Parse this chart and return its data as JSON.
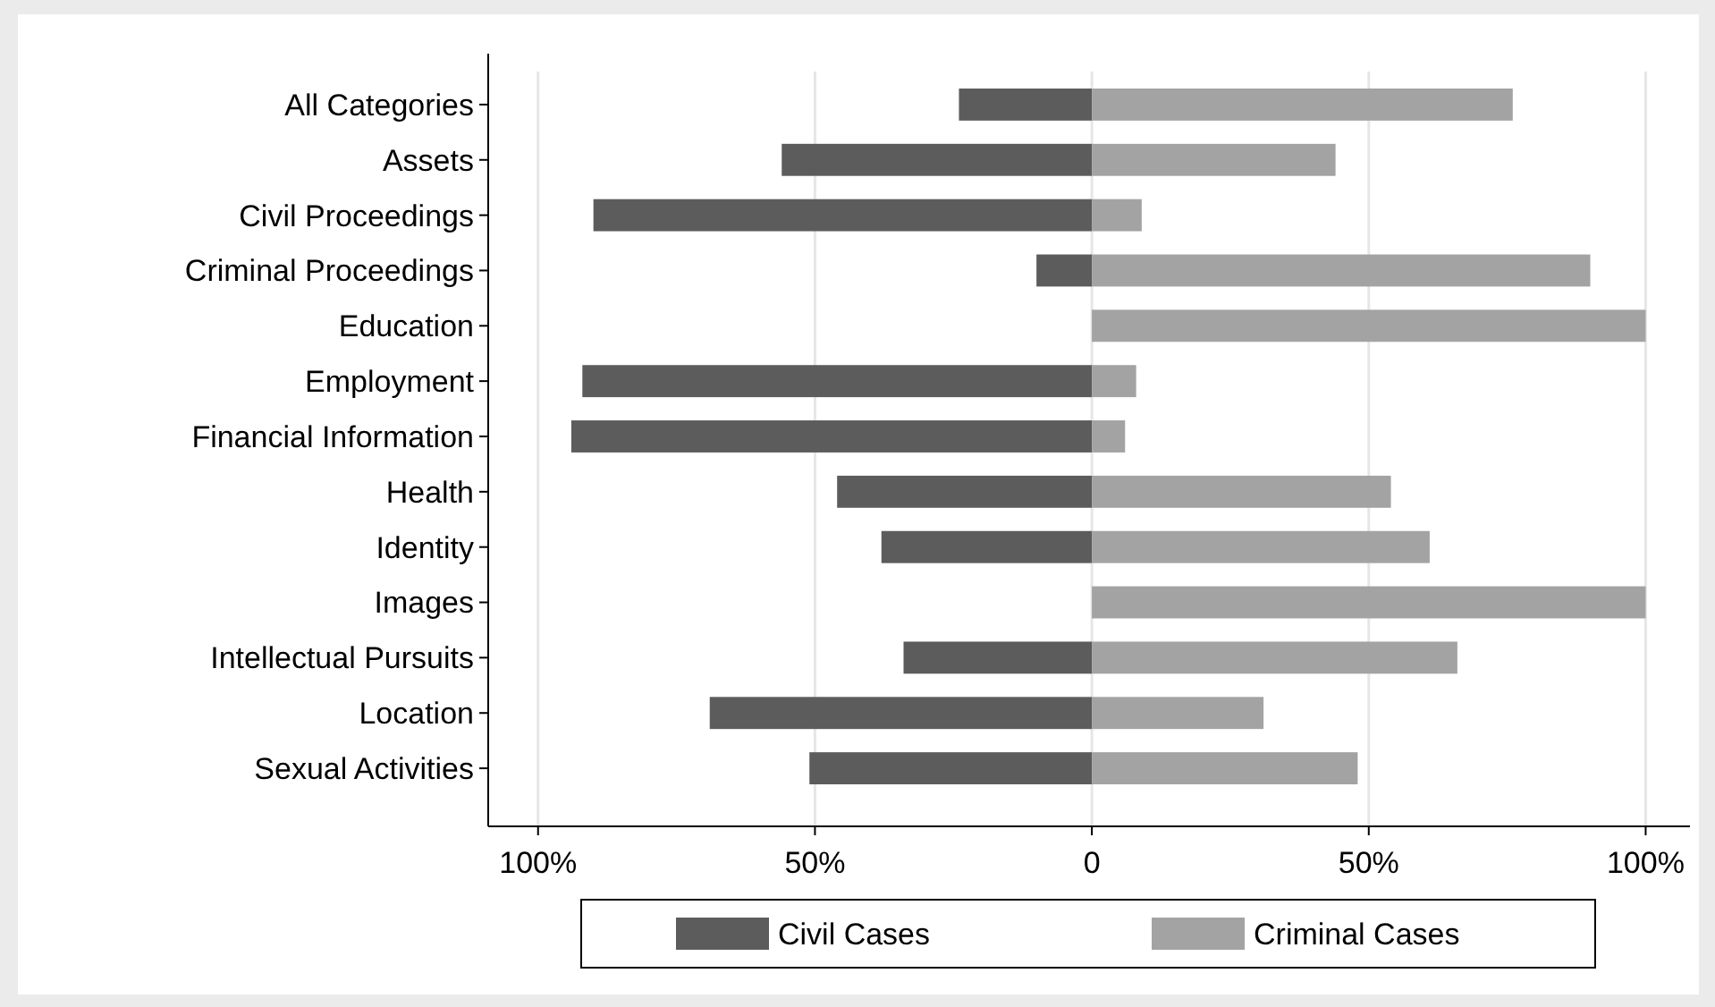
{
  "chart_data": {
    "type": "bar",
    "orientation": "horizontal",
    "stacked": true,
    "categories": [
      "All Categories",
      "Assets",
      "Civil Proceedings",
      "Criminal Proceedings",
      "Education",
      "Employment",
      "Financial Information",
      "Health",
      "Identity",
      "Images",
      "Intellectual Pursuits",
      "Location",
      "Sexual Activities"
    ],
    "series": [
      {
        "name": "Civil Cases",
        "color": "#5c5c5c",
        "values": [
          -24,
          -56,
          -90,
          -10,
          0,
          -92,
          -94,
          -46,
          -38,
          0,
          -34,
          -69,
          -51
        ]
      },
      {
        "name": "Criminal Cases",
        "color": "#a3a3a3",
        "values": [
          76,
          44,
          9,
          90,
          100,
          8,
          6,
          54,
          61,
          100,
          66,
          31,
          48
        ]
      }
    ],
    "xlim": [
      -109,
      108
    ],
    "xticks": [
      {
        "value": -100,
        "label": "100%"
      },
      {
        "value": -50,
        "label": "50%"
      },
      0,
      {
        "value": 50,
        "label": "50%"
      },
      {
        "value": 100,
        "label": "100%"
      }
    ],
    "grid": "x",
    "legend": "bottom"
  }
}
